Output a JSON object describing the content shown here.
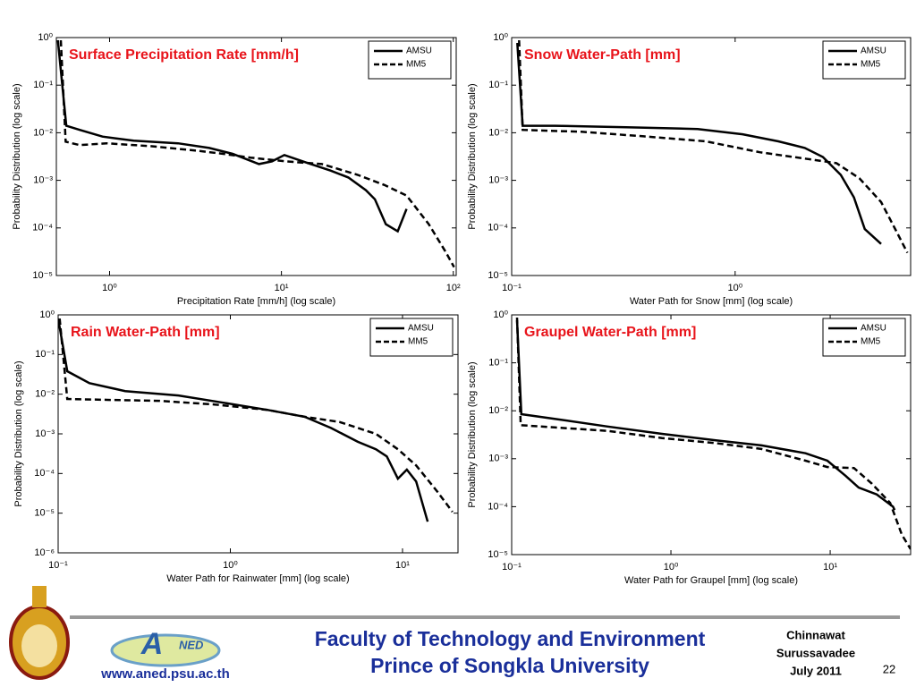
{
  "chart_data": [
    {
      "type": "line",
      "title": "Surface Precipitation Rate [mm/h]",
      "xlabel": "Precipitation Rate [mm/h] (log scale)",
      "ylabel": "Probability Distribution (log scale)",
      "xscale": "log",
      "yscale": "log",
      "legend": "upper right",
      "xlim": [
        0.49,
        104
      ],
      "ylim": [
        1e-05,
        1
      ],
      "xticks": [
        {
          "value": 1,
          "label": "10⁰"
        },
        {
          "value": 10,
          "label": "10¹"
        },
        {
          "value": 100,
          "label": "10²"
        }
      ],
      "yticks": [
        {
          "value": 1,
          "label": "10⁰"
        },
        {
          "value": 0.1,
          "label": "10⁻¹"
        },
        {
          "value": 0.01,
          "label": "10⁻²"
        },
        {
          "value": 0.001,
          "label": "10⁻³"
        },
        {
          "value": 0.0001,
          "label": "10⁻⁴"
        },
        {
          "value": 1e-05,
          "label": "10⁻⁵"
        }
      ],
      "series": [
        {
          "name": "AMSU",
          "color": "#000000",
          "line_style": "solid",
          "x": [
            0.5,
            0.56,
            0.67,
            0.91,
            1.38,
            2.5,
            3.8,
            5.2,
            7.4,
            8.8,
            10.4,
            14.3,
            19.3,
            24.5,
            31,
            35,
            40.5,
            47.5,
            53.5
          ],
          "values": [
            0.88,
            0.014,
            0.0115,
            0.0083,
            0.0068,
            0.006,
            0.0048,
            0.0036,
            0.0022,
            0.0025,
            0.0034,
            0.0023,
            0.0016,
            0.00115,
            0.00062,
            0.0004,
            0.00012,
            8.5e-05,
            0.00025
          ]
        },
        {
          "name": "MM5",
          "color": "#000000",
          "line_style": "dashed",
          "x": [
            0.52,
            0.555,
            0.67,
            0.96,
            1.76,
            3.2,
            4.6,
            6.6,
            10.6,
            17.2,
            27.8,
            39.7,
            53.5,
            72,
            90,
            101
          ],
          "values": [
            0.88,
            0.0065,
            0.0055,
            0.006,
            0.0052,
            0.0042,
            0.0036,
            0.003,
            0.0025,
            0.0022,
            0.0013,
            0.0008,
            0.00048,
            0.00012,
            3.2e-05,
            1.5e-05
          ]
        }
      ]
    },
    {
      "type": "line",
      "title": "Snow Water-Path [mm]",
      "xlabel": "Water Path for Snow [mm] (log scale)",
      "ylabel": "Probability Distribution (log scale)",
      "xscale": "log",
      "yscale": "log",
      "legend": "upper right",
      "xlim": [
        0.1,
        6.1
      ],
      "ylim": [
        1e-05,
        1
      ],
      "xticks": [
        {
          "value": 0.1,
          "label": "10⁻¹"
        },
        {
          "value": 1,
          "label": "10⁰"
        }
      ],
      "yticks": [
        {
          "value": 1,
          "label": "10⁰"
        },
        {
          "value": 0.1,
          "label": "10⁻¹"
        },
        {
          "value": 0.01,
          "label": "10⁻²"
        },
        {
          "value": 0.001,
          "label": "10⁻³"
        },
        {
          "value": 0.0001,
          "label": "10⁻⁴"
        },
        {
          "value": 1e-05,
          "label": "10⁻⁵"
        }
      ],
      "series": [
        {
          "name": "AMSU",
          "color": "#000000",
          "line_style": "solid",
          "x": [
            0.106,
            0.112,
            0.156,
            0.325,
            0.68,
            1.08,
            1.56,
            2.05,
            2.47,
            2.97,
            3.4,
            3.8,
            4.5
          ],
          "values": [
            0.77,
            0.014,
            0.014,
            0.013,
            0.012,
            0.0093,
            0.0066,
            0.0048,
            0.0031,
            0.0013,
            0.00044,
            9.5e-05,
            4.6e-05
          ]
        },
        {
          "name": "MM5",
          "color": "#000000",
          "line_style": "dashed",
          "x": [
            0.108,
            0.112,
            0.205,
            0.39,
            0.74,
            1.29,
            2.25,
            2.84,
            3.6,
            4.5,
            5.2,
            5.9
          ],
          "values": [
            0.88,
            0.0115,
            0.0105,
            0.0084,
            0.0066,
            0.0039,
            0.0027,
            0.0023,
            0.0011,
            0.00035,
            9.5e-05,
            3e-05
          ]
        }
      ]
    },
    {
      "type": "line",
      "title": "Rain Water-Path [mm]",
      "xlabel": "Water Path for Rainwater [mm] (log scale)",
      "ylabel": "Probability Distribution (log scale)",
      "xscale": "log",
      "yscale": "log",
      "legend": "upper right",
      "xlim": [
        0.1,
        21
      ],
      "ylim": [
        1e-06,
        1
      ],
      "xticks": [
        {
          "value": 0.1,
          "label": "10⁻¹"
        },
        {
          "value": 1,
          "label": "10⁰"
        },
        {
          "value": 10,
          "label": "10¹"
        }
      ],
      "yticks": [
        {
          "value": 1,
          "label": "10⁰"
        },
        {
          "value": 0.1,
          "label": "10⁻¹"
        },
        {
          "value": 0.01,
          "label": "10⁻²"
        },
        {
          "value": 0.001,
          "label": "10⁻³"
        },
        {
          "value": 0.0001,
          "label": "10⁻⁴"
        },
        {
          "value": 1e-05,
          "label": "10⁻⁵"
        },
        {
          "value": 1e-06,
          "label": "10⁻⁶"
        }
      ],
      "series": [
        {
          "name": "AMSU",
          "color": "#000000",
          "line_style": "solid",
          "x": [
            0.1,
            0.113,
            0.152,
            0.245,
            0.5,
            0.91,
            1.65,
            2.7,
            3.85,
            5.5,
            7.0,
            8.1,
            9.4,
            10.6,
            12,
            14
          ],
          "values": [
            0.81,
            0.038,
            0.019,
            0.012,
            0.0093,
            0.0061,
            0.004,
            0.0027,
            0.0014,
            0.00063,
            0.00041,
            0.00027,
            7.4e-05,
            0.000125,
            6.3e-05,
            6.1e-06
          ]
        },
        {
          "name": "MM5",
          "color": "#000000",
          "line_style": "dashed",
          "x": [
            0.102,
            0.113,
            0.193,
            0.39,
            0.81,
            1.65,
            2.7,
            4.3,
            7.0,
            9.4,
            12,
            16,
            19.5
          ],
          "values": [
            0.81,
            0.0076,
            0.0072,
            0.0068,
            0.0055,
            0.004,
            0.0027,
            0.002,
            0.001,
            0.00041,
            0.00016,
            3.4e-05,
            1.08e-05
          ]
        }
      ]
    },
    {
      "type": "line",
      "title": "Graupel Water-Path [mm]",
      "xlabel": "Water Path for Graupel [mm] (log scale)",
      "ylabel": "Probability Distribution (log scale)",
      "xscale": "log",
      "yscale": "log",
      "legend": "upper right",
      "xlim": [
        0.1,
        32
      ],
      "ylim": [
        1e-05,
        1
      ],
      "xticks": [
        {
          "value": 0.1,
          "label": "10⁻¹"
        },
        {
          "value": 1,
          "label": "10⁰"
        },
        {
          "value": 10,
          "label": "10¹"
        }
      ],
      "yticks": [
        {
          "value": 1,
          "label": "10⁰"
        },
        {
          "value": 0.1,
          "label": "10⁻¹"
        },
        {
          "value": 0.01,
          "label": "10⁻²"
        },
        {
          "value": 0.001,
          "label": "10⁻³"
        },
        {
          "value": 0.0001,
          "label": "10⁻⁴"
        },
        {
          "value": 1e-05,
          "label": "10⁻⁵"
        }
      ],
      "series": [
        {
          "name": "AMSU",
          "color": "#000000",
          "line_style": "solid",
          "x": [
            0.108,
            0.115,
            0.186,
            0.4,
            0.88,
            1.94,
            3.7,
            7,
            9.6,
            12.5,
            15.1,
            19.6,
            24.8,
            25.4
          ],
          "values": [
            0.77,
            0.0085,
            0.0068,
            0.0047,
            0.0033,
            0.0024,
            0.0019,
            0.0013,
            0.00091,
            0.00044,
            0.00025,
            0.00018,
            0.0001,
            8.5e-05
          ]
        },
        {
          "name": "MM5",
          "color": "#000000",
          "line_style": "dashed",
          "x": [
            0.108,
            0.114,
            0.186,
            0.4,
            0.88,
            1.94,
            3.7,
            7,
            9.6,
            14.1,
            18.3,
            23.8,
            28.2,
            32
          ],
          "values": [
            0.88,
            0.005,
            0.0045,
            0.0038,
            0.0027,
            0.0021,
            0.0016,
            0.00091,
            0.00067,
            0.00064,
            0.0003,
            0.00012,
            2.6e-05,
            1.3e-05
          ]
        }
      ]
    }
  ],
  "footer": {
    "institution_line1": "Faculty of Technology and Environment",
    "institution_line2": "Prince of Songkla University",
    "website": "www.aned.psu.ac.th",
    "author_first": "Chinnawat",
    "author_last": "Surussavadee",
    "date": "July 2011",
    "page_number": "22",
    "logo_letter": "A",
    "logo_text": "NED"
  }
}
